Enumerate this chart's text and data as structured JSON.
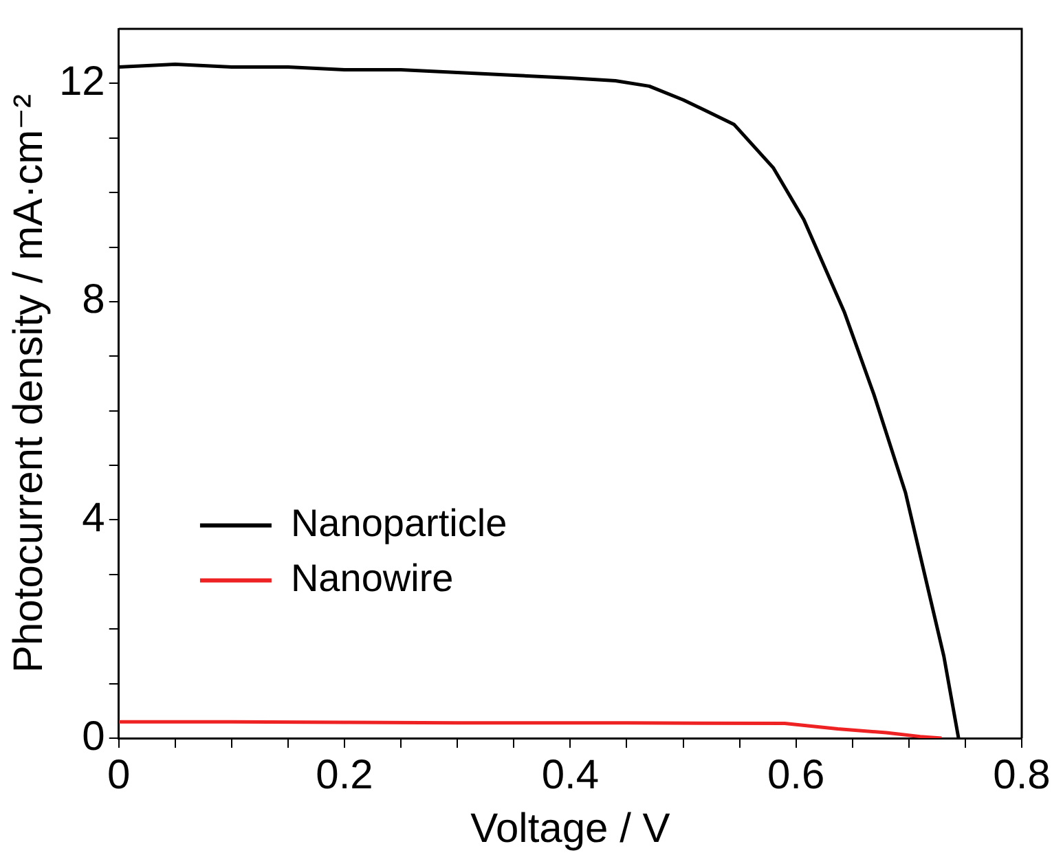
{
  "chart_data": {
    "type": "line",
    "xlabel": "Voltage / V",
    "ylabel": "Photocurrent density / mA·cm⁻²",
    "xlim": [
      0,
      0.8
    ],
    "ylim": [
      0,
      13
    ],
    "xticks": [
      0,
      {
        "value": 0.05,
        "label": null
      },
      {
        "value": 0.1,
        "label": null
      },
      {
        "value": 0.15,
        "label": null
      },
      0.2,
      {
        "value": 0.25,
        "label": null
      },
      {
        "value": 0.3,
        "label": null
      },
      {
        "value": 0.35,
        "label": null
      },
      0.4,
      {
        "value": 0.45,
        "label": null
      },
      {
        "value": 0.5,
        "label": null
      },
      {
        "value": 0.55,
        "label": null
      },
      0.6,
      {
        "value": 0.65,
        "label": null
      },
      {
        "value": 0.7,
        "label": null
      },
      {
        "value": 0.75,
        "label": null
      },
      0.8
    ],
    "yticks": [
      0,
      {
        "value": 1,
        "label": null
      },
      {
        "value": 2,
        "label": null
      },
      {
        "value": 3,
        "label": null
      },
      4,
      {
        "value": 5,
        "label": null
      },
      {
        "value": 6,
        "label": null
      },
      {
        "value": 7,
        "label": null
      },
      8,
      {
        "value": 9,
        "label": null
      },
      {
        "value": 10,
        "label": null
      },
      {
        "value": 11,
        "label": null
      },
      12
    ],
    "grid": false,
    "legend": "left",
    "marker": "none",
    "line_style": "solid",
    "series": [
      {
        "name": "Nanoparticle",
        "color": "#000000",
        "x": [
          0,
          0.05,
          0.1,
          0.15,
          0.2,
          0.25,
          0.3,
          0.35,
          0.4,
          0.44,
          0.47,
          0.5,
          0.52,
          0.545,
          0.58,
          0.607,
          0.643,
          0.669,
          0.697,
          0.714,
          0.731,
          0.744
        ],
        "values": [
          12.3,
          12.35,
          12.3,
          12.3,
          12.25,
          12.25,
          12.2,
          12.15,
          12.1,
          12.05,
          11.95,
          11.7,
          11.5,
          11.25,
          10.45,
          9.5,
          7.8,
          6.3,
          4.5,
          3.0,
          1.5,
          0
        ]
      },
      {
        "name": "Nanowire",
        "color": "#ee2222",
        "x": [
          0,
          0.1,
          0.2,
          0.3,
          0.45,
          0.59,
          0.637,
          0.68,
          0.71,
          0.729
        ],
        "values": [
          0.3,
          0.3,
          0.29,
          0.28,
          0.28,
          0.27,
          0.17,
          0.1,
          0.03,
          0
        ]
      }
    ]
  }
}
